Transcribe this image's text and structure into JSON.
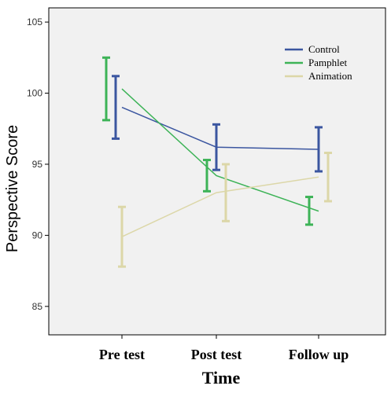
{
  "chart_data": {
    "type": "line",
    "title": "",
    "xlabel": "Time",
    "ylabel": "Perspective  Score",
    "categories": [
      "Pre test",
      "Post test",
      "Follow up"
    ],
    "ylim": [
      83,
      106
    ],
    "yticks": [
      85,
      90,
      95,
      100,
      105
    ],
    "grid": false,
    "legend_position": "top-right",
    "error_bars": true,
    "series": [
      {
        "name": "Control",
        "color": "#3B56A0",
        "values": [
          99.0,
          96.2,
          96.05
        ],
        "err_low": [
          96.8,
          94.6,
          94.5
        ],
        "err_high": [
          101.2,
          97.8,
          97.6
        ]
      },
      {
        "name": "Pamphlet",
        "color": "#3DB357",
        "values": [
          100.3,
          94.2,
          91.7
        ],
        "err_low": [
          98.1,
          93.1,
          90.75
        ],
        "err_high": [
          102.5,
          95.3,
          92.7
        ]
      },
      {
        "name": "Animation",
        "color": "#DCD7A8",
        "values": [
          89.9,
          93.0,
          94.1
        ],
        "err_low": [
          87.8,
          91.0,
          92.4
        ],
        "err_high": [
          92.0,
          95.0,
          95.8
        ]
      }
    ]
  }
}
